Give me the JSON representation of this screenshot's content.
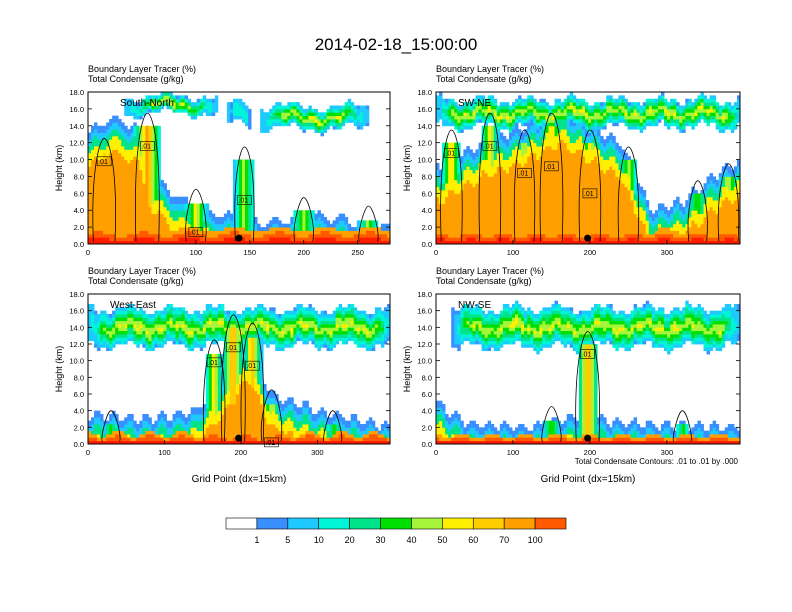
{
  "title": "2014-02-18_15:00:00",
  "colors": {
    "levels": [
      "#ffffff",
      "#3a8fff",
      "#1ec9ff",
      "#00f5d8",
      "#00e388",
      "#00e000",
      "#a6f53a",
      "#fff000",
      "#ffcc00",
      "#ffa000",
      "#ff5a00",
      "#ff1a00"
    ],
    "contour": "#000000"
  },
  "colorbar": {
    "labels": [
      "1",
      "5",
      "10",
      "20",
      "30",
      "40",
      "50",
      "60",
      "70",
      "100"
    ]
  },
  "contour_note": "Total Condensate Contours: .01 to .01 by .000",
  "chart_data": [
    {
      "type": "heatmap",
      "title_line1": "Boundary Layer Tracer   (%)",
      "title_line2": "Total Condensate   (g/kg)",
      "direction": "South-North",
      "ylabel": "Height (km)",
      "xlabel": "",
      "xlim": [
        0,
        280
      ],
      "ylim": [
        0,
        18
      ],
      "xticks": [
        "0",
        "100",
        "150",
        "200",
        "250"
      ],
      "xtick_values": [
        0,
        100,
        150,
        200,
        250
      ],
      "yticks": [
        "0.0",
        "2.0",
        "4.0",
        "6.0",
        "8.0",
        "10.0",
        "12.0",
        "14.0",
        "16.0",
        "18.0"
      ],
      "contour_labels": [
        ".01",
        ".01",
        ".01",
        ".01"
      ],
      "marker_x": 140
    },
    {
      "type": "heatmap",
      "title_line1": "Boundary Layer Tracer   (%)",
      "title_line2": "Total Condensate   (g/kg)",
      "direction": "SW-NE",
      "ylabel": "Height (km)",
      "xlabel": "",
      "xlim": [
        0,
        395
      ],
      "ylim": [
        0,
        18
      ],
      "xticks": [
        "0",
        "100",
        "200",
        "300"
      ],
      "xtick_values": [
        0,
        100,
        200,
        300
      ],
      "yticks": [
        "0.0",
        "2.0",
        "4.0",
        "6.0",
        "8.0",
        "10.0",
        "12.0",
        "14.0",
        "16.0",
        "18.0"
      ],
      "contour_labels": [
        ".01",
        ".01",
        ".01",
        ".01",
        ".01"
      ],
      "marker_x": 197
    },
    {
      "type": "heatmap",
      "title_line1": "Boundary Layer Tracer   (%)",
      "title_line2": "Total Condensate   (g/kg)",
      "direction": "West-East",
      "ylabel": "Height (km)",
      "xlabel": "Grid Point (dx=15km)",
      "xlim": [
        0,
        395
      ],
      "ylim": [
        0,
        18
      ],
      "xticks": [
        "0",
        "100",
        "200",
        "300"
      ],
      "xtick_values": [
        0,
        100,
        200,
        300
      ],
      "yticks": [
        "0.0",
        "2.0",
        "4.0",
        "6.0",
        "8.0",
        "10.0",
        "12.0",
        "14.0",
        "16.0",
        "18.0"
      ],
      "contour_labels": [
        ".01",
        ".01",
        ".01",
        ".01"
      ],
      "marker_x": 197
    },
    {
      "type": "heatmap",
      "title_line1": "Boundary Layer Tracer   (%)",
      "title_line2": "Total Condensate   (g/kg)",
      "direction": "NW-SE",
      "ylabel": "Height (km)",
      "xlabel": "Grid Point (dx=15km)",
      "xlim": [
        0,
        395
      ],
      "ylim": [
        0,
        18
      ],
      "xticks": [
        "0",
        "100",
        "200",
        "300"
      ],
      "xtick_values": [
        0,
        100,
        200,
        300
      ],
      "yticks": [
        "0.0",
        "2.0",
        "4.0",
        "6.0",
        "8.0",
        "10.0",
        "12.0",
        "14.0",
        "16.0",
        "18.0"
      ],
      "contour_labels": [
        ".01"
      ],
      "marker_x": 197
    }
  ]
}
